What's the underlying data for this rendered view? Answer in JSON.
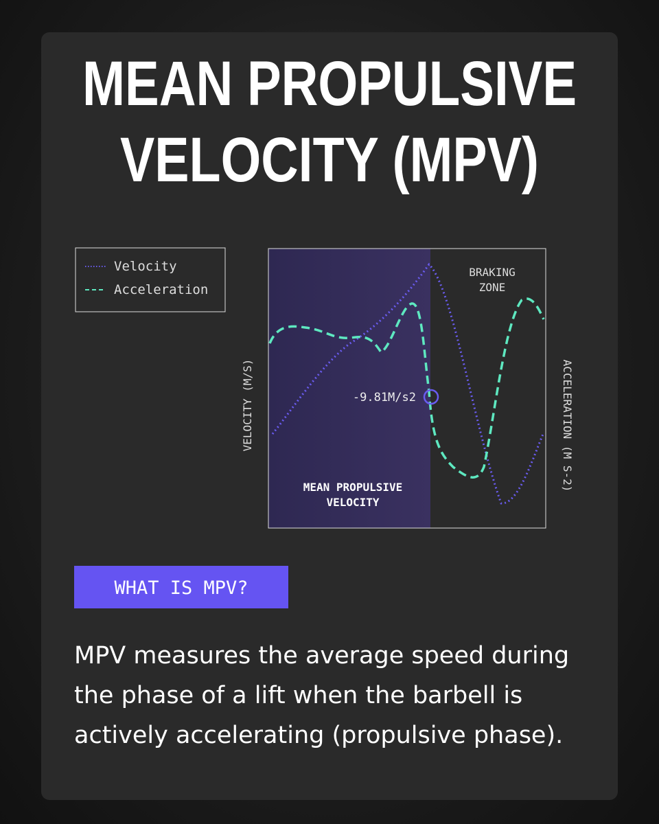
{
  "title": [
    "MEAN PROPULSIVE",
    "VELOCITY (MPV)"
  ],
  "legend": [
    "Velocity",
    "Acceleration"
  ],
  "chart": {
    "zone_left": [
      "MEAN PROPULSIVE",
      "VELOCITY"
    ],
    "zone_right": [
      "BRAKING",
      "ZONE"
    ],
    "annotation": "-9.81M/s2",
    "y_label": "VELOCITY (M/S)",
    "y2_label": "ACCELERATION (M S-2)"
  },
  "section": {
    "button": "WHAT IS MPV?",
    "body": "MPV measures the average speed during the phase of a lift when the barbell is actively accelerating (propulsive phase)."
  }
}
